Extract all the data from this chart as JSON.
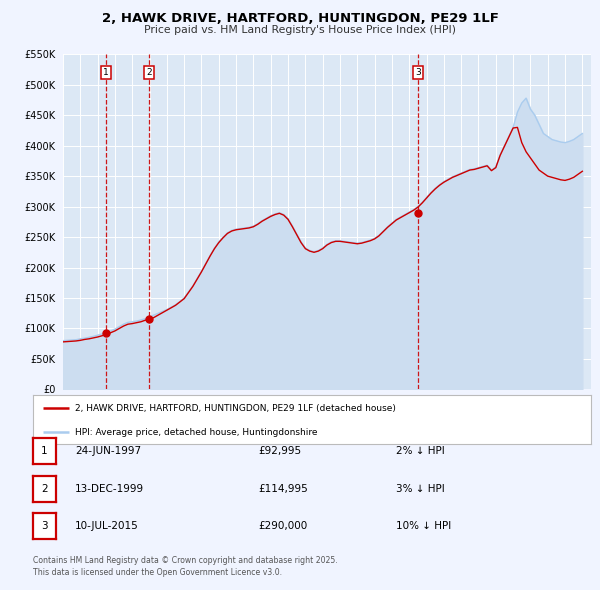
{
  "title": "2, HAWK DRIVE, HARTFORD, HUNTINGDON, PE29 1LF",
  "subtitle": "Price paid vs. HM Land Registry's House Price Index (HPI)",
  "background_color": "#f0f4ff",
  "plot_bg_color": "#dce8f5",
  "grid_color": "#ffffff",
  "ylim": [
    0,
    550000
  ],
  "yticks": [
    0,
    50000,
    100000,
    150000,
    200000,
    250000,
    300000,
    350000,
    400000,
    450000,
    500000,
    550000
  ],
  "xmin": 1995.0,
  "xmax": 2025.5,
  "sale_color": "#cc0000",
  "hpi_color": "#aaccee",
  "hpi_fill_color": "#ccddf0",
  "vline_color": "#cc0000",
  "sales": [
    {
      "date_num": 1997.48,
      "price": 92995,
      "label": "1"
    },
    {
      "date_num": 1999.95,
      "price": 114995,
      "label": "2"
    },
    {
      "date_num": 2015.52,
      "price": 290000,
      "label": "3"
    }
  ],
  "sale_annotations": [
    {
      "label": "1",
      "date": "24-JUN-1997",
      "price": "£92,995",
      "pct": "2% ↓ HPI"
    },
    {
      "label": "2",
      "date": "13-DEC-1999",
      "price": "£114,995",
      "pct": "3% ↓ HPI"
    },
    {
      "label": "3",
      "date": "10-JUL-2015",
      "price": "£290,000",
      "pct": "10% ↓ HPI"
    }
  ],
  "legend_line1": "2, HAWK DRIVE, HARTFORD, HUNTINGDON, PE29 1LF (detached house)",
  "legend_line2": "HPI: Average price, detached house, Huntingdonshire",
  "footer": "Contains HM Land Registry data © Crown copyright and database right 2025.\nThis data is licensed under the Open Government Licence v3.0.",
  "hpi_data": {
    "years": [
      1995.0,
      1995.25,
      1995.5,
      1995.75,
      1996.0,
      1996.25,
      1996.5,
      1996.75,
      1997.0,
      1997.25,
      1997.5,
      1997.75,
      1998.0,
      1998.25,
      1998.5,
      1998.75,
      1999.0,
      1999.25,
      1999.5,
      1999.75,
      2000.0,
      2000.25,
      2000.5,
      2000.75,
      2001.0,
      2001.25,
      2001.5,
      2001.75,
      2002.0,
      2002.25,
      2002.5,
      2002.75,
      2003.0,
      2003.25,
      2003.5,
      2003.75,
      2004.0,
      2004.25,
      2004.5,
      2004.75,
      2005.0,
      2005.25,
      2005.5,
      2005.75,
      2006.0,
      2006.25,
      2006.5,
      2006.75,
      2007.0,
      2007.25,
      2007.5,
      2007.75,
      2008.0,
      2008.25,
      2008.5,
      2008.75,
      2009.0,
      2009.25,
      2009.5,
      2009.75,
      2010.0,
      2010.25,
      2010.5,
      2010.75,
      2011.0,
      2011.25,
      2011.5,
      2011.75,
      2012.0,
      2012.25,
      2012.5,
      2012.75,
      2013.0,
      2013.25,
      2013.5,
      2013.75,
      2014.0,
      2014.25,
      2014.5,
      2014.75,
      2015.0,
      2015.25,
      2015.5,
      2015.75,
      2016.0,
      2016.25,
      2016.5,
      2016.75,
      2017.0,
      2017.25,
      2017.5,
      2017.75,
      2018.0,
      2018.25,
      2018.5,
      2018.75,
      2019.0,
      2019.25,
      2019.5,
      2019.75,
      2020.0,
      2020.25,
      2020.5,
      2020.75,
      2021.0,
      2021.25,
      2021.5,
      2021.75,
      2022.0,
      2022.25,
      2022.5,
      2022.75,
      2023.0,
      2023.25,
      2023.5,
      2023.75,
      2024.0,
      2024.25,
      2024.5,
      2024.75,
      2025.0
    ],
    "values": [
      80000,
      80500,
      81000,
      81500,
      83000,
      84000,
      85500,
      87000,
      89000,
      91000,
      93000,
      96000,
      99000,
      103000,
      107000,
      110000,
      111000,
      112000,
      114000,
      116000,
      119000,
      122000,
      125000,
      128000,
      131000,
      135000,
      139000,
      144000,
      150000,
      160000,
      170000,
      182000,
      194000,
      207000,
      220000,
      232000,
      242000,
      250000,
      257000,
      261000,
      263000,
      264000,
      265000,
      266000,
      268000,
      272000,
      277000,
      281000,
      285000,
      288000,
      290000,
      287000,
      280000,
      268000,
      255000,
      242000,
      232000,
      228000,
      226000,
      228000,
      232000,
      238000,
      242000,
      244000,
      244000,
      243000,
      242000,
      241000,
      240000,
      241000,
      243000,
      245000,
      248000,
      253000,
      260000,
      267000,
      273000,
      279000,
      283000,
      287000,
      291000,
      295000,
      300000,
      307000,
      315000,
      323000,
      330000,
      336000,
      341000,
      345000,
      349000,
      352000,
      355000,
      358000,
      361000,
      362000,
      364000,
      366000,
      368000,
      360000,
      365000,
      385000,
      400000,
      415000,
      430000,
      455000,
      470000,
      478000,
      460000,
      450000,
      435000,
      420000,
      415000,
      410000,
      408000,
      406000,
      405000,
      407000,
      410000,
      415000,
      420000
    ]
  },
  "red_data": {
    "years": [
      1995.0,
      1995.25,
      1995.5,
      1995.75,
      1996.0,
      1996.25,
      1996.5,
      1996.75,
      1997.0,
      1997.25,
      1997.5,
      1997.75,
      1998.0,
      1998.25,
      1998.5,
      1998.75,
      1999.0,
      1999.25,
      1999.5,
      1999.75,
      2000.0,
      2000.25,
      2000.5,
      2000.75,
      2001.0,
      2001.25,
      2001.5,
      2001.75,
      2002.0,
      2002.25,
      2002.5,
      2002.75,
      2003.0,
      2003.25,
      2003.5,
      2003.75,
      2004.0,
      2004.25,
      2004.5,
      2004.75,
      2005.0,
      2005.25,
      2005.5,
      2005.75,
      2006.0,
      2006.25,
      2006.5,
      2006.75,
      2007.0,
      2007.25,
      2007.5,
      2007.75,
      2008.0,
      2008.25,
      2008.5,
      2008.75,
      2009.0,
      2009.25,
      2009.5,
      2009.75,
      2010.0,
      2010.25,
      2010.5,
      2010.75,
      2011.0,
      2011.25,
      2011.5,
      2011.75,
      2012.0,
      2012.25,
      2012.5,
      2012.75,
      2013.0,
      2013.25,
      2013.5,
      2013.75,
      2014.0,
      2014.25,
      2014.5,
      2014.75,
      2015.0,
      2015.25,
      2015.5,
      2015.75,
      2016.0,
      2016.25,
      2016.5,
      2016.75,
      2017.0,
      2017.25,
      2017.5,
      2017.75,
      2018.0,
      2018.25,
      2018.5,
      2018.75,
      2019.0,
      2019.25,
      2019.5,
      2019.75,
      2020.0,
      2020.25,
      2020.5,
      2020.75,
      2021.0,
      2021.25,
      2021.5,
      2021.75,
      2022.0,
      2022.25,
      2022.5,
      2022.75,
      2023.0,
      2023.25,
      2023.5,
      2023.75,
      2024.0,
      2024.25,
      2024.5,
      2024.75,
      2025.0
    ],
    "values": [
      78000,
      78500,
      79000,
      79500,
      80500,
      82000,
      83000,
      84500,
      86000,
      88000,
      90000,
      93000,
      96000,
      100000,
      104000,
      107000,
      108000,
      109500,
      111000,
      113500,
      114995,
      118000,
      122000,
      126000,
      130000,
      134000,
      138000,
      143500,
      149000,
      159000,
      169000,
      181000,
      193000,
      206000,
      219000,
      231000,
      241000,
      249000,
      256000,
      260000,
      262000,
      263000,
      264000,
      265000,
      267000,
      271000,
      276000,
      280000,
      284000,
      287000,
      289000,
      286000,
      279000,
      267000,
      254000,
      241000,
      231000,
      227000,
      225000,
      227000,
      231000,
      237000,
      241000,
      243000,
      243000,
      242000,
      241000,
      240000,
      239000,
      240000,
      242000,
      244000,
      247000,
      252000,
      259000,
      266000,
      272000,
      278000,
      282000,
      286000,
      290000,
      294000,
      299000,
      306000,
      314000,
      322000,
      329000,
      335000,
      340000,
      344000,
      348000,
      351000,
      354000,
      357000,
      360000,
      361000,
      363000,
      365000,
      367000,
      359000,
      364000,
      384000,
      399000,
      414000,
      429000,
      430000,
      405000,
      390000,
      380000,
      370000,
      360000,
      355000,
      350000,
      348000,
      346000,
      344000,
      343000,
      345000,
      348000,
      353000,
      358000
    ]
  }
}
